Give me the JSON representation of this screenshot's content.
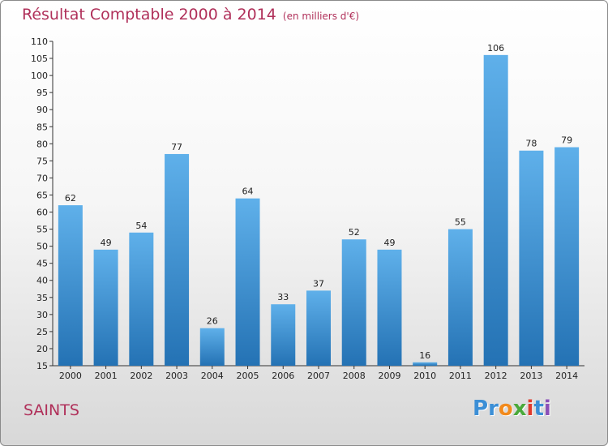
{
  "title": "Résultat Comptable 2000 à 2014",
  "subtitle": "(en milliers d'€)",
  "commune": "SAINTS",
  "brand": {
    "text": "Proxiti",
    "letters": [
      {
        "ch": "P",
        "color": "#3c8fd6"
      },
      {
        "ch": "r",
        "color": "#3c8fd6"
      },
      {
        "ch": "o",
        "color": "#f28a1c"
      },
      {
        "ch": "x",
        "color": "#4aa93a"
      },
      {
        "ch": "i",
        "color": "#e03a2c"
      },
      {
        "ch": "t",
        "color": "#3c8fd6"
      },
      {
        "ch": "i",
        "color": "#8b4fb8"
      }
    ]
  },
  "colors": {
    "bar_top": "#5fb0ea",
    "bar_bottom": "#2472b4",
    "title": "#b0305a"
  },
  "chart_data": {
    "type": "bar",
    "categories": [
      "2000",
      "2001",
      "2002",
      "2003",
      "2004",
      "2005",
      "2006",
      "2007",
      "2008",
      "2009",
      "2010",
      "2011",
      "2012",
      "2013",
      "2014"
    ],
    "values": [
      62,
      49,
      54,
      77,
      26,
      64,
      33,
      37,
      52,
      49,
      16,
      55,
      106,
      78,
      79
    ],
    "ylim": [
      15,
      110
    ],
    "yticks": [
      15,
      20,
      25,
      30,
      35,
      40,
      45,
      50,
      55,
      60,
      65,
      70,
      75,
      80,
      85,
      90,
      95,
      100,
      105,
      110
    ],
    "grid": false,
    "legend": "none"
  }
}
